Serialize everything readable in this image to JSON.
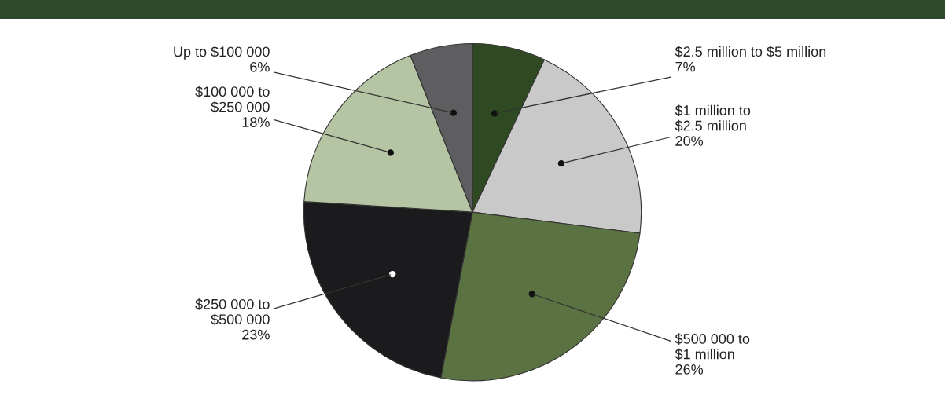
{
  "chart_data": {
    "type": "pie",
    "categories": [
      "$2.5 million to $5 million",
      "$1 million to\n$2.5 million",
      "$500 000 to\n$1 million",
      "$250 000 to\n$500 000",
      "$100 000 to\n$250 000",
      "Up to $100 000"
    ],
    "values": [
      7,
      20,
      26,
      23,
      18,
      6
    ],
    "value_labels": [
      "7%",
      "20%",
      "26%",
      "23%",
      "18%",
      "6%"
    ],
    "colors": [
      "#2f4a22",
      "#c9c9c9",
      "#5b7243",
      "#1b1a1c",
      "#b5c4a2",
      "#5e5e60"
    ],
    "legend": false
  }
}
